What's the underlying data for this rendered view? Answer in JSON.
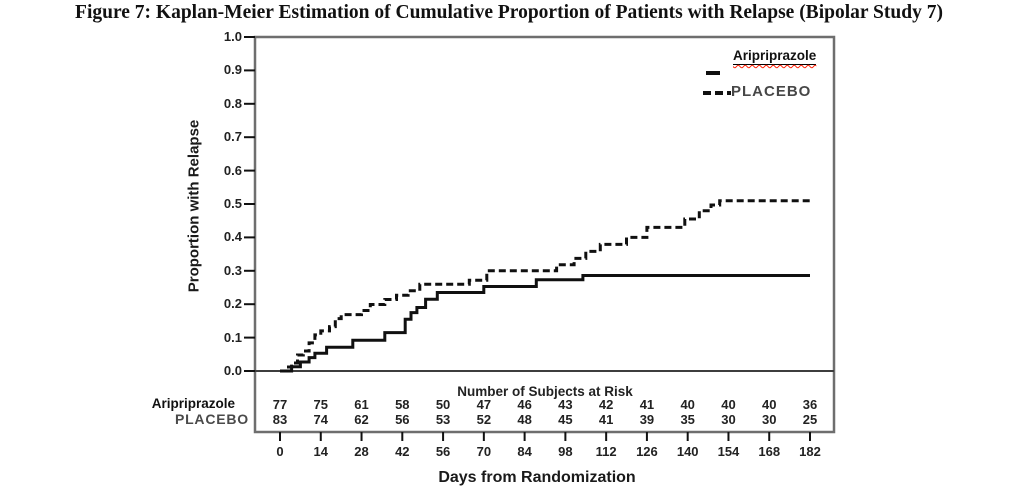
{
  "figure": {
    "title": "Figure 7: Kaplan-Meier Estimation of Cumulative Proportion of Patients with Relapse (Bipolar Study 7)"
  },
  "chart_data": {
    "type": "line",
    "subtype": "kaplan_meier_step",
    "title": "Figure 7: Kaplan-Meier Estimation of Cumulative Proportion of Patients with Relapse (Bipolar Study 7)",
    "xlabel": "Days from Randomization",
    "ylabel": "Proportion with Relapse",
    "xlim": [
      0,
      182
    ],
    "ylim": [
      0.0,
      1.0
    ],
    "grid": false,
    "legend_position": "inside-top-right",
    "xticks": [
      0,
      14,
      28,
      42,
      56,
      70,
      84,
      98,
      112,
      126,
      140,
      154,
      168,
      182
    ],
    "yticks": [
      1.0,
      0.9,
      0.8,
      0.7,
      0.6,
      0.5,
      0.4,
      0.3,
      0.2,
      0.1,
      0.0
    ],
    "ytick_labels": [
      "1.0",
      "0.9",
      "0.8",
      "0.7",
      "0.6",
      "0.5",
      "0.4",
      "0.3",
      "0.2",
      "0.1",
      "0.0"
    ],
    "legend": [
      {
        "name": "Aripriprazole",
        "line": "solid"
      },
      {
        "name": "PLACEBO",
        "line": "dashed"
      }
    ],
    "series": [
      {
        "name": "Aripriprazole",
        "style": "solid",
        "points": [
          [
            0,
            0
          ],
          [
            4,
            0.013
          ],
          [
            7,
            0.027
          ],
          [
            10,
            0.04
          ],
          [
            12,
            0.053
          ],
          [
            16,
            0.071
          ],
          [
            25,
            0.092
          ],
          [
            36,
            0.115
          ],
          [
            43,
            0.155
          ],
          [
            45,
            0.175
          ],
          [
            47,
            0.19
          ],
          [
            50,
            0.215
          ],
          [
            54,
            0.235
          ],
          [
            70,
            0.253
          ],
          [
            88,
            0.273
          ],
          [
            104,
            0.286
          ],
          [
            182,
            0.286
          ]
        ]
      },
      {
        "name": "PLACEBO",
        "style": "dashed",
        "points": [
          [
            0,
            0
          ],
          [
            2,
            0.012
          ],
          [
            4,
            0.024
          ],
          [
            6,
            0.048
          ],
          [
            8,
            0.06
          ],
          [
            10,
            0.084
          ],
          [
            12,
            0.108
          ],
          [
            14,
            0.12
          ],
          [
            17,
            0.133
          ],
          [
            19,
            0.157
          ],
          [
            21,
            0.169
          ],
          [
            28,
            0.181
          ],
          [
            31,
            0.199
          ],
          [
            36,
            0.214
          ],
          [
            40,
            0.227
          ],
          [
            44,
            0.24
          ],
          [
            48,
            0.26
          ],
          [
            65,
            0.272
          ],
          [
            71,
            0.3
          ],
          [
            95,
            0.318
          ],
          [
            101,
            0.337
          ],
          [
            105,
            0.358
          ],
          [
            110,
            0.379
          ],
          [
            119,
            0.4
          ],
          [
            126,
            0.43
          ],
          [
            139,
            0.455
          ],
          [
            144,
            0.48
          ],
          [
            148,
            0.497
          ],
          [
            151,
            0.51
          ],
          [
            182,
            0.51
          ]
        ]
      }
    ],
    "at_risk": {
      "title": "Number of Subjects at Risk",
      "rows": [
        {
          "label": "Aripriprazole",
          "counts": [
            77,
            75,
            61,
            58,
            50,
            47,
            46,
            43,
            42,
            41,
            40,
            40,
            40,
            36
          ]
        },
        {
          "label": "PLACEBO",
          "counts": [
            83,
            74,
            62,
            56,
            53,
            52,
            48,
            45,
            41,
            39,
            35,
            30,
            30,
            25
          ]
        }
      ]
    },
    "colors": {
      "line": "#101010",
      "frame": "#6e6e6e",
      "baseline": "#3d3d3d",
      "tick": "#111111",
      "text": "#1a1a1a",
      "squiggle": "#ff1a00"
    }
  }
}
